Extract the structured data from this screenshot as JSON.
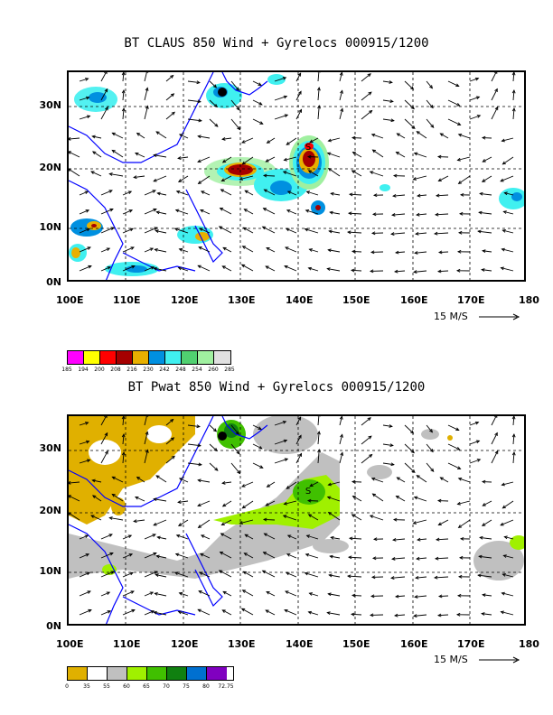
{
  "panel1": {
    "title": "BT CLAUS 850 Wind + Gyrelocs 000915/1200",
    "y_labels": [
      "30N",
      "20N",
      "10N",
      "0N"
    ],
    "x_labels": [
      "100E",
      "110E",
      "120E",
      "130E",
      "140E",
      "150E",
      "160E",
      "170E",
      "180"
    ],
    "scale_label": "15 M/S",
    "colorbar_labels": [
      "185",
      "194",
      "200",
      "208",
      "216",
      "230",
      "242",
      "248",
      "254",
      "260",
      "285"
    ],
    "colorbar_colors": [
      "#ff00ff",
      "#ffff00",
      "#ff0000",
      "#a50000",
      "#e8b000",
      "#0090e0",
      "#40f0f0",
      "#50d070",
      "#a0f0a0",
      "#e0e0e0"
    ]
  },
  "panel2": {
    "title": "BT Pwat 850 Wind + Gyrelocs 000915/1200",
    "y_labels": [
      "30N",
      "20N",
      "10N",
      "0N"
    ],
    "x_labels": [
      "100E",
      "110E",
      "120E",
      "130E",
      "140E",
      "150E",
      "160E",
      "170E",
      "180"
    ],
    "scale_label": "15 M/S",
    "colorbar_labels": [
      "0",
      "35",
      "55",
      "60",
      "65",
      "70",
      "75",
      "80",
      "72.75"
    ],
    "colorbar_colors": [
      "#e0b000",
      "#ffffff",
      "#c0c0c0",
      "#a0f000",
      "#40c000",
      "#108010",
      "#0070d0",
      "#8000c0"
    ]
  },
  "colors": {
    "coast": "#0000ff",
    "grid": "#000000"
  }
}
